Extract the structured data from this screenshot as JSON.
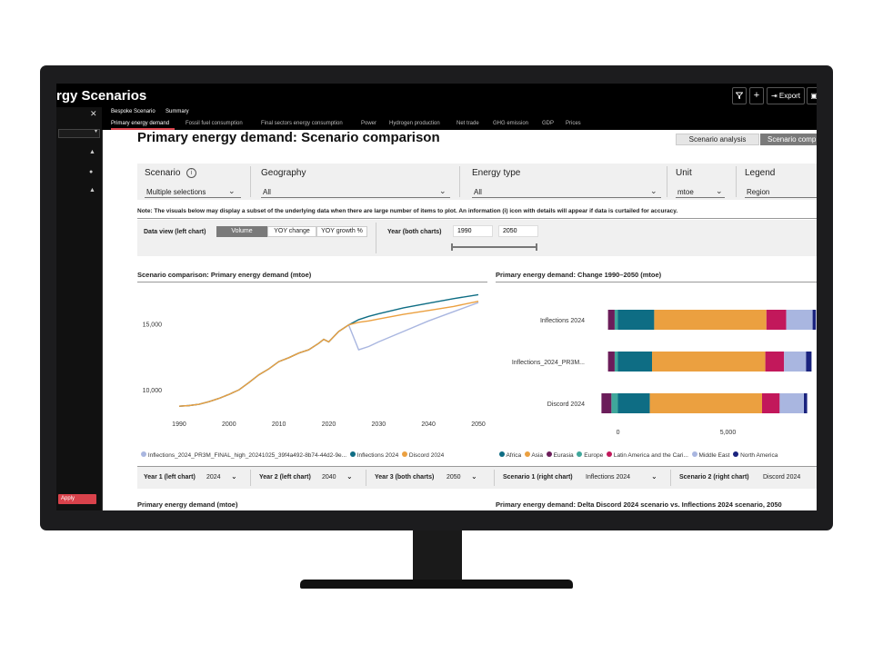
{
  "app": {
    "title": "rgy Scenarios",
    "export_label": "Export",
    "apply_label": "Apply"
  },
  "subnav": [
    "Bespoke Scenario",
    "Summary"
  ],
  "tabs": [
    "Primary energy demand",
    "Fossil fuel consumption",
    "Final sectors energy consumption",
    "Power",
    "Hydrogen production",
    "Net trade",
    "GHG emission",
    "GDP",
    "Prices"
  ],
  "page": {
    "title": "Primary energy demand: Scenario comparison",
    "view_buttons": [
      "Scenario analysis",
      "Scenario comp"
    ]
  },
  "filters": [
    {
      "label": "Scenario",
      "value": "Multiple selections"
    },
    {
      "label": "Geography",
      "value": "All"
    },
    {
      "label": "Energy type",
      "value": "All"
    },
    {
      "label": "Unit",
      "value": "mtoe"
    },
    {
      "label": "Legend",
      "value": "Region"
    }
  ],
  "note": "Note: The visuals below may display a subset of the underlying data when there are large number of items to plot. An information (i) icon with details will appear if data is curtailed for accuracy.",
  "data_view": {
    "label": "Data view (left chart)",
    "options": [
      "Volume",
      "YOY change",
      "YOY growth %"
    ],
    "selected": "Volume"
  },
  "year_range": {
    "label": "Year (both charts)",
    "start": "1990",
    "end": "2050"
  },
  "colors": {
    "orange": "#eba040",
    "teal": "#0e6d84",
    "lavender": "#a9b6e0",
    "red": "#d9424b",
    "magenta": "#c2185b",
    "blue": "#1a237e"
  },
  "left_chart": {
    "title": "Scenario comparison: Primary energy demand (mtoe)",
    "y_ticks": [
      "15,000",
      "10,000"
    ],
    "x_ticks": [
      "1990",
      "2000",
      "2010",
      "2020",
      "2030",
      "2040",
      "2050"
    ],
    "legend": [
      "Inflections_2024_PR3M_FINAL_high_20241025_39f4a492-8b74-44d2-9e...",
      "Inflections 2024",
      "Discord 2024"
    ]
  },
  "right_chart": {
    "title": "Primary energy demand: Change 1990–2050 (mtoe)",
    "categories": [
      "Inflections 2024",
      "Inflections_2024_PR3M...",
      "Discord 2024"
    ],
    "x_ticks": [
      "0",
      "5,000"
    ],
    "legend": [
      "Africa",
      "Asia",
      "Eurasia",
      "Europe",
      "Latin America and the Cari...",
      "Middle East",
      "North America"
    ]
  },
  "chart_data": [
    {
      "type": "line",
      "title": "Scenario comparison: Primary energy demand (mtoe)",
      "xlabel": "",
      "ylabel": "",
      "x": [
        1990,
        1992,
        1994,
        1996,
        1998,
        2000,
        2002,
        2004,
        2006,
        2008,
        2010,
        2012,
        2014,
        2016,
        2018,
        2019,
        2020,
        2022,
        2024,
        2026,
        2028,
        2030,
        2035,
        2040,
        2045,
        2050
      ],
      "xlim": [
        1988,
        2050
      ],
      "ylim": [
        8400,
        17400
      ],
      "series": [
        {
          "name": "Inflections_2024_PR3M_FINAL_high_20241025_39f4a492-8b74-44d2-9e...",
          "color": "#a9b6e0",
          "values": [
            8800,
            8850,
            8950,
            9150,
            9400,
            9700,
            10050,
            10600,
            11200,
            11650,
            12200,
            12500,
            12850,
            13100,
            13600,
            13900,
            13700,
            14500,
            15000,
            13100,
            13350,
            13700,
            14500,
            15300,
            16000,
            16700
          ]
        },
        {
          "name": "Inflections 2024",
          "color": "#0e6d84",
          "values": [
            8800,
            8850,
            8950,
            9150,
            9400,
            9700,
            10050,
            10600,
            11200,
            11650,
            12200,
            12500,
            12850,
            13100,
            13600,
            13900,
            13700,
            14500,
            15000,
            15400,
            15650,
            15850,
            16300,
            16650,
            17000,
            17300
          ]
        },
        {
          "name": "Discord 2024",
          "color": "#eba040",
          "values": [
            8800,
            8850,
            8950,
            9150,
            9400,
            9700,
            10050,
            10600,
            11200,
            11650,
            12200,
            12500,
            12850,
            13100,
            13600,
            13900,
            13700,
            14500,
            15000,
            15200,
            15300,
            15450,
            15800,
            16100,
            16400,
            16800
          ]
        }
      ]
    },
    {
      "type": "bar",
      "orientation": "horizontal",
      "stacked": true,
      "title": "Primary energy demand: Change 1990–2050 (mtoe)",
      "categories": [
        "Inflections 2024",
        "Inflections_2024_PR3M...",
        "Discord 2024"
      ],
      "xlim": [
        -600,
        8700
      ],
      "series": [
        {
          "name": "Europe",
          "color": "#3fa79b",
          "values": [
            -150,
            -150,
            -300
          ]
        },
        {
          "name": "Eurasia",
          "color": "#6b1d5a",
          "values": [
            -300,
            -300,
            -450
          ]
        },
        {
          "name": "Africa",
          "color": "#0e6d84",
          "values": [
            1650,
            1550,
            1450
          ]
        },
        {
          "name": "Asia",
          "color": "#eba040",
          "values": [
            5100,
            5150,
            5100
          ]
        },
        {
          "name": "Latin America and the Cari...",
          "color": "#c2185b",
          "values": [
            900,
            850,
            800
          ]
        },
        {
          "name": "Middle East",
          "color": "#a9b6e0",
          "values": [
            1200,
            1000,
            1100
          ]
        },
        {
          "name": "North America",
          "color": "#1a237e",
          "values": [
            150,
            250,
            150
          ]
        }
      ]
    }
  ],
  "bottom_controls": [
    {
      "label": "Year 1 (left chart)",
      "value": "2024"
    },
    {
      "label": "Year 2 (left chart)",
      "value": "2040"
    },
    {
      "label": "Year 3 (both charts)",
      "value": "2050"
    },
    {
      "label": "Scenario 1 (right chart)",
      "value": "Inflections 2024"
    },
    {
      "label": "Scenario 2 (right chart)",
      "value": "Discord 2024"
    }
  ],
  "bottom_titles": [
    "Primary energy demand (mtoe)",
    "Primary energy demand: Delta Discord 2024 scenario vs. Inflections 2024 scenario, 2050"
  ]
}
